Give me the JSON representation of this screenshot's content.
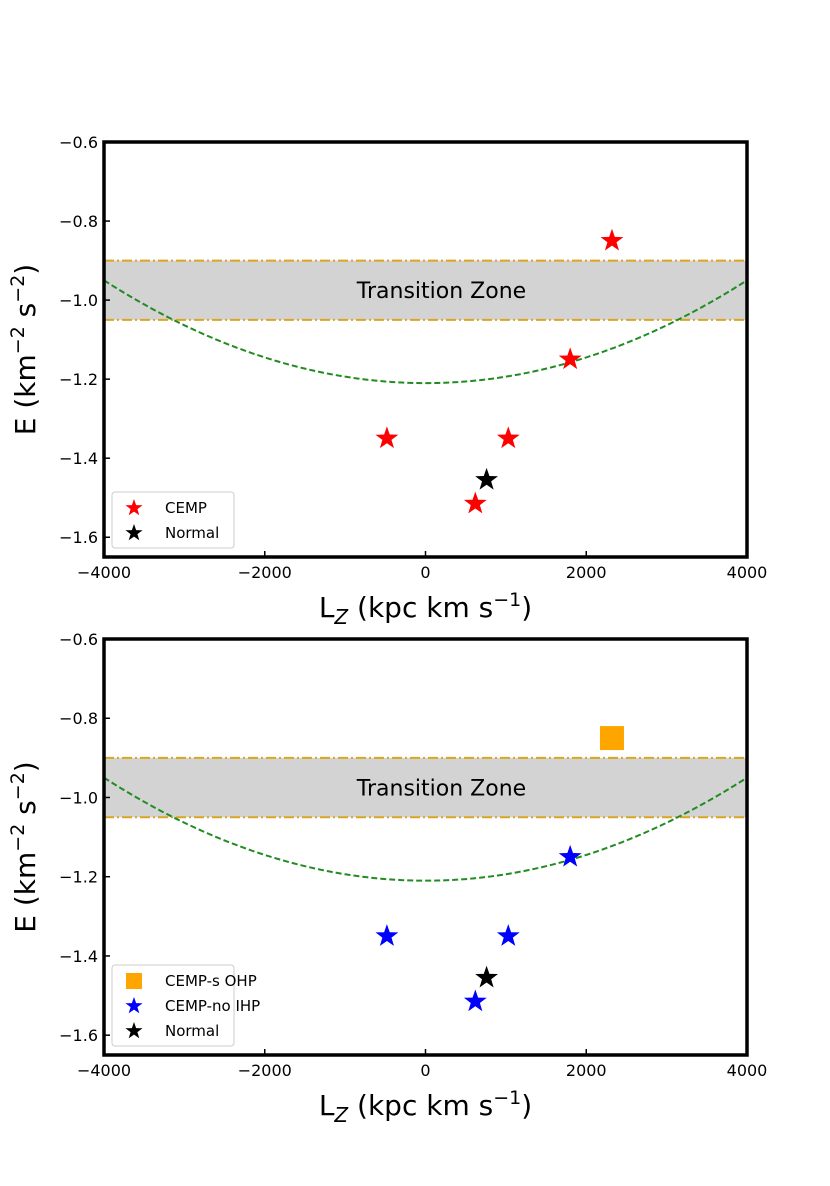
{
  "chart_data": [
    {
      "type": "scatter",
      "xlim": [
        -4000,
        4000
      ],
      "ylim": [
        -1.65,
        -0.6
      ],
      "xticks": [
        -4000,
        -2000,
        0,
        2000,
        4000
      ],
      "yticks": [
        -1.6,
        -1.4,
        -1.2,
        -1.0,
        -0.8,
        -0.6
      ],
      "xtick_labels": [
        "−4000",
        "−2000",
        "0",
        "2000",
        "4000"
      ],
      "ytick_labels": [
        "−1.6",
        "−1.4",
        "−1.2",
        "−1.0",
        "−0.8",
        "−0.6"
      ],
      "xlabel": {
        "main": "L",
        "sub": "Z",
        "rest": " (kpc km s",
        "sup": "−1",
        "end": ")"
      },
      "ylabel": {
        "main": "E (km",
        "sup1": "−2",
        "mid": " s",
        "sup2": "−2",
        "end": ")"
      },
      "transition_zone": {
        "label": "Transition Zone",
        "y_top": -0.9,
        "y_bottom": -1.05,
        "fill": "#d3d3d3",
        "line_color": "#daa520"
      },
      "curve": {
        "color": "#228b22",
        "vertex_y": -1.21,
        "edge_y": -0.95
      },
      "series": [
        {
          "name": "CEMP",
          "marker": "star",
          "color": "#ff0000",
          "points": [
            [
              2320,
              -0.85
            ],
            [
              1800,
              -1.15
            ],
            [
              -480,
              -1.35
            ],
            [
              1030,
              -1.35
            ],
            [
              620,
              -1.515
            ]
          ]
        },
        {
          "name": "Normal",
          "marker": "star",
          "color": "#000000",
          "points": [
            [
              760,
              -1.455
            ]
          ]
        }
      ],
      "legend": [
        "CEMP",
        "Normal"
      ]
    },
    {
      "type": "scatter",
      "xlim": [
        -4000,
        4000
      ],
      "ylim": [
        -1.65,
        -0.6
      ],
      "xticks": [
        -4000,
        -2000,
        0,
        2000,
        4000
      ],
      "yticks": [
        -1.6,
        -1.4,
        -1.2,
        -1.0,
        -0.8,
        -0.6
      ],
      "xtick_labels": [
        "−4000",
        "−2000",
        "0",
        "2000",
        "4000"
      ],
      "ytick_labels": [
        "−1.6",
        "−1.4",
        "−1.2",
        "−1.0",
        "−0.8",
        "−0.6"
      ],
      "xlabel": {
        "main": "L",
        "sub": "Z",
        "rest": " (kpc km s",
        "sup": "−1",
        "end": ")"
      },
      "ylabel": {
        "main": "E (km",
        "sup1": "−2",
        "mid": " s",
        "sup2": "−2",
        "end": ")"
      },
      "transition_zone": {
        "label": "Transition Zone",
        "y_top": -0.9,
        "y_bottom": -1.05,
        "fill": "#d3d3d3",
        "line_color": "#daa520"
      },
      "curve": {
        "color": "#228b22",
        "vertex_y": -1.21,
        "edge_y": -0.95
      },
      "series": [
        {
          "name": "CEMP-s OHP",
          "marker": "square",
          "color": "#ffa500",
          "points": [
            [
              2320,
              -0.85
            ]
          ]
        },
        {
          "name": "CEMP-no IHP",
          "marker": "star",
          "color": "#0000ff",
          "points": [
            [
              1800,
              -1.15
            ],
            [
              -480,
              -1.35
            ],
            [
              1030,
              -1.35
            ],
            [
              620,
              -1.515
            ]
          ]
        },
        {
          "name": "Normal",
          "marker": "star",
          "color": "#000000",
          "points": [
            [
              760,
              -1.455
            ]
          ]
        }
      ],
      "legend": [
        "CEMP-s OHP",
        "CEMP-no IHP",
        "Normal"
      ]
    }
  ]
}
